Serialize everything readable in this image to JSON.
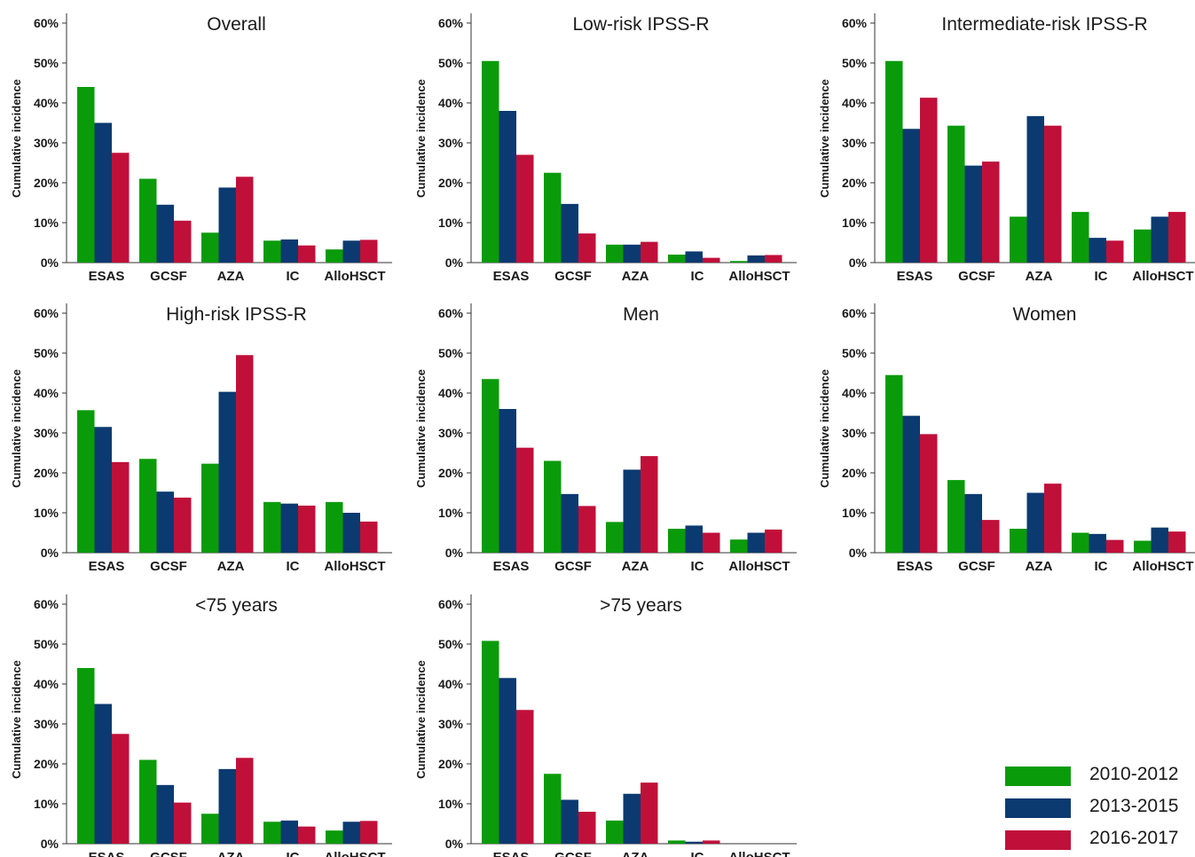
{
  "legend": [
    {
      "label": "2010-2012",
      "color": "#0a9b0a"
    },
    {
      "label": "2013-2015",
      "color": "#0b3a70"
    },
    {
      "label": "2016-2017",
      "color": "#c0103a"
    }
  ],
  "chart_data": [
    {
      "type": "bar",
      "title": "Overall",
      "ylabel": "Cumulative incidence",
      "ylim": [
        0,
        60
      ],
      "yticks": [
        "0%",
        "10%",
        "20%",
        "30%",
        "40%",
        "50%",
        "60%"
      ],
      "categories": [
        "ESAS",
        "GCSF",
        "AZA",
        "IC",
        "AlloHSCT"
      ],
      "series": [
        {
          "name": "2010-2012",
          "values": [
            44,
            21,
            7.5,
            5.5,
            3.3
          ]
        },
        {
          "name": "2013-2015",
          "values": [
            35,
            14.5,
            18.8,
            5.8,
            5.5
          ]
        },
        {
          "name": "2016-2017",
          "values": [
            27.5,
            10.5,
            21.5,
            4.3,
            5.7
          ]
        }
      ]
    },
    {
      "type": "bar",
      "title": "Low-risk IPSS-R",
      "ylabel": "Cumulative incidence",
      "ylim": [
        0,
        60
      ],
      "yticks": [
        "0%",
        "10%",
        "20%",
        "30%",
        "40%",
        "50%",
        "60%"
      ],
      "categories": [
        "ESAS",
        "GCSF",
        "AZA",
        "IC",
        "AlloHSCT"
      ],
      "series": [
        {
          "name": "2010-2012",
          "values": [
            50.5,
            22.5,
            4.5,
            2,
            0.4
          ]
        },
        {
          "name": "2013-2015",
          "values": [
            38,
            14.7,
            4.5,
            2.8,
            1.8
          ]
        },
        {
          "name": "2016-2017",
          "values": [
            27,
            7.3,
            5.2,
            1.2,
            1.9
          ]
        }
      ]
    },
    {
      "type": "bar",
      "title": "Intermediate-risk IPSS-R",
      "ylabel": "Cumulative incidence",
      "ylim": [
        0,
        60
      ],
      "yticks": [
        "0%",
        "10%",
        "20%",
        "30%",
        "40%",
        "50%",
        "60%"
      ],
      "categories": [
        "ESAS",
        "GCSF",
        "AZA",
        "IC",
        "AlloHSCT"
      ],
      "series": [
        {
          "name": "2010-2012",
          "values": [
            50.5,
            34.3,
            11.5,
            12.7,
            8.3
          ]
        },
        {
          "name": "2013-2015",
          "values": [
            33.5,
            24.3,
            36.7,
            6.2,
            11.5
          ]
        },
        {
          "name": "2016-2017",
          "values": [
            41.3,
            25.3,
            34.3,
            5.5,
            12.7
          ]
        }
      ]
    },
    {
      "type": "bar",
      "title": "High-risk IPSS-R",
      "ylabel": "Cumulative incidence",
      "ylim": [
        0,
        60
      ],
      "yticks": [
        "0%",
        "10%",
        "20%",
        "30%",
        "40%",
        "50%",
        "60%"
      ],
      "categories": [
        "ESAS",
        "GCSF",
        "AZA",
        "IC",
        "AlloHSCT"
      ],
      "series": [
        {
          "name": "2010-2012",
          "values": [
            35.7,
            23.5,
            22.3,
            12.7,
            12.7
          ]
        },
        {
          "name": "2013-2015",
          "values": [
            31.5,
            15.3,
            40.3,
            12.3,
            10
          ]
        },
        {
          "name": "2016-2017",
          "values": [
            22.7,
            13.8,
            49.5,
            11.8,
            7.8
          ]
        }
      ]
    },
    {
      "type": "bar",
      "title": "Men",
      "ylabel": "Cumulative incidence",
      "ylim": [
        0,
        60
      ],
      "yticks": [
        "0%",
        "10%",
        "20%",
        "30%",
        "40%",
        "50%",
        "60%"
      ],
      "categories": [
        "ESAS",
        "GCSF",
        "AZA",
        "IC",
        "AlloHSCT"
      ],
      "series": [
        {
          "name": "2010-2012",
          "values": [
            43.5,
            23,
            7.7,
            6,
            3.3
          ]
        },
        {
          "name": "2013-2015",
          "values": [
            36,
            14.7,
            20.8,
            6.8,
            5
          ]
        },
        {
          "name": "2016-2017",
          "values": [
            26.3,
            11.7,
            24.2,
            5,
            5.8
          ]
        }
      ]
    },
    {
      "type": "bar",
      "title": "Women",
      "ylabel": "Cumulative incidence",
      "ylim": [
        0,
        60
      ],
      "yticks": [
        "0%",
        "10%",
        "20%",
        "30%",
        "40%",
        "50%",
        "60%"
      ],
      "categories": [
        "ESAS",
        "GCSF",
        "AZA",
        "IC",
        "AlloHSCT"
      ],
      "series": [
        {
          "name": "2010-2012",
          "values": [
            44.5,
            18.2,
            6,
            5,
            3
          ]
        },
        {
          "name": "2013-2015",
          "values": [
            34.3,
            14.7,
            15,
            4.7,
            6.3
          ]
        },
        {
          "name": "2016-2017",
          "values": [
            29.7,
            8.2,
            17.3,
            3.2,
            5.3
          ]
        }
      ]
    },
    {
      "type": "bar",
      "title": "<75 years",
      "ylabel": "Cumulative incidence",
      "ylim": [
        0,
        60
      ],
      "yticks": [
        "0%",
        "10%",
        "20%",
        "30%",
        "40%",
        "50%",
        "60%"
      ],
      "categories": [
        "ESAS",
        "GCSF",
        "AZA",
        "IC",
        "AlloHSCT"
      ],
      "series": [
        {
          "name": "2010-2012",
          "values": [
            44,
            21,
            7.5,
            5.5,
            3.3
          ]
        },
        {
          "name": "2013-2015",
          "values": [
            35,
            14.7,
            18.7,
            5.8,
            5.5
          ]
        },
        {
          "name": "2016-2017",
          "values": [
            27.5,
            10.3,
            21.5,
            4.3,
            5.7
          ]
        }
      ]
    },
    {
      "type": "bar",
      "title": ">75 years",
      "ylabel": "Cumulative incidence",
      "ylim": [
        0,
        60
      ],
      "yticks": [
        "0%",
        "10%",
        "20%",
        "30%",
        "40%",
        "50%",
        "60%"
      ],
      "categories": [
        "ESAS",
        "GCSF",
        "AZA",
        "IC",
        "AlloHSCT"
      ],
      "series": [
        {
          "name": "2010-2012",
          "values": [
            50.8,
            17.5,
            5.8,
            0.8,
            0
          ]
        },
        {
          "name": "2013-2015",
          "values": [
            41.5,
            11,
            12.5,
            0.5,
            0
          ]
        },
        {
          "name": "2016-2017",
          "values": [
            33.5,
            8,
            15.3,
            0.8,
            0
          ]
        }
      ]
    }
  ]
}
